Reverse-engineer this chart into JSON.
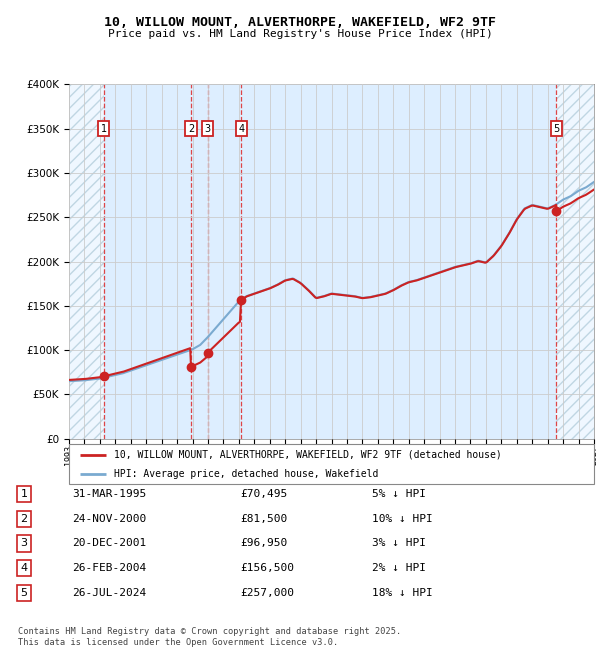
{
  "title": "10, WILLOW MOUNT, ALVERTHORPE, WAKEFIELD, WF2 9TF",
  "subtitle": "Price paid vs. HM Land Registry's House Price Index (HPI)",
  "sales": [
    {
      "num": 1,
      "date_label": "31-MAR-1995",
      "year": 1995.25,
      "price": 70495,
      "pct": "5%"
    },
    {
      "num": 2,
      "date_label": "24-NOV-2000",
      "year": 2000.9,
      "price": 81500,
      "pct": "10%"
    },
    {
      "num": 3,
      "date_label": "20-DEC-2001",
      "year": 2001.97,
      "price": 96950,
      "pct": "3%"
    },
    {
      "num": 4,
      "date_label": "26-FEB-2004",
      "year": 2004.15,
      "price": 156500,
      "pct": "2%"
    },
    {
      "num": 5,
      "date_label": "26-JUL-2024",
      "year": 2024.57,
      "price": 257000,
      "pct": "18%"
    }
  ],
  "hpi_line_color": "#7aaad0",
  "price_line_color": "#cc2222",
  "sale_dot_color": "#cc2222",
  "vline_color": "#dd3333",
  "box_color": "#cc2222",
  "bg_color": "#ddeeff",
  "hatch_color": "#aabbcc",
  "grid_color": "#cccccc",
  "ymin": 0,
  "ymax": 400000,
  "xmin": 1993,
  "xmax": 2027,
  "legend_label_red": "10, WILLOW MOUNT, ALVERTHORPE, WAKEFIELD, WF2 9TF (detached house)",
  "legend_label_blue": "HPI: Average price, detached house, Wakefield",
  "footer": "Contains HM Land Registry data © Crown copyright and database right 2025.\nThis data is licensed under the Open Government Licence v3.0."
}
